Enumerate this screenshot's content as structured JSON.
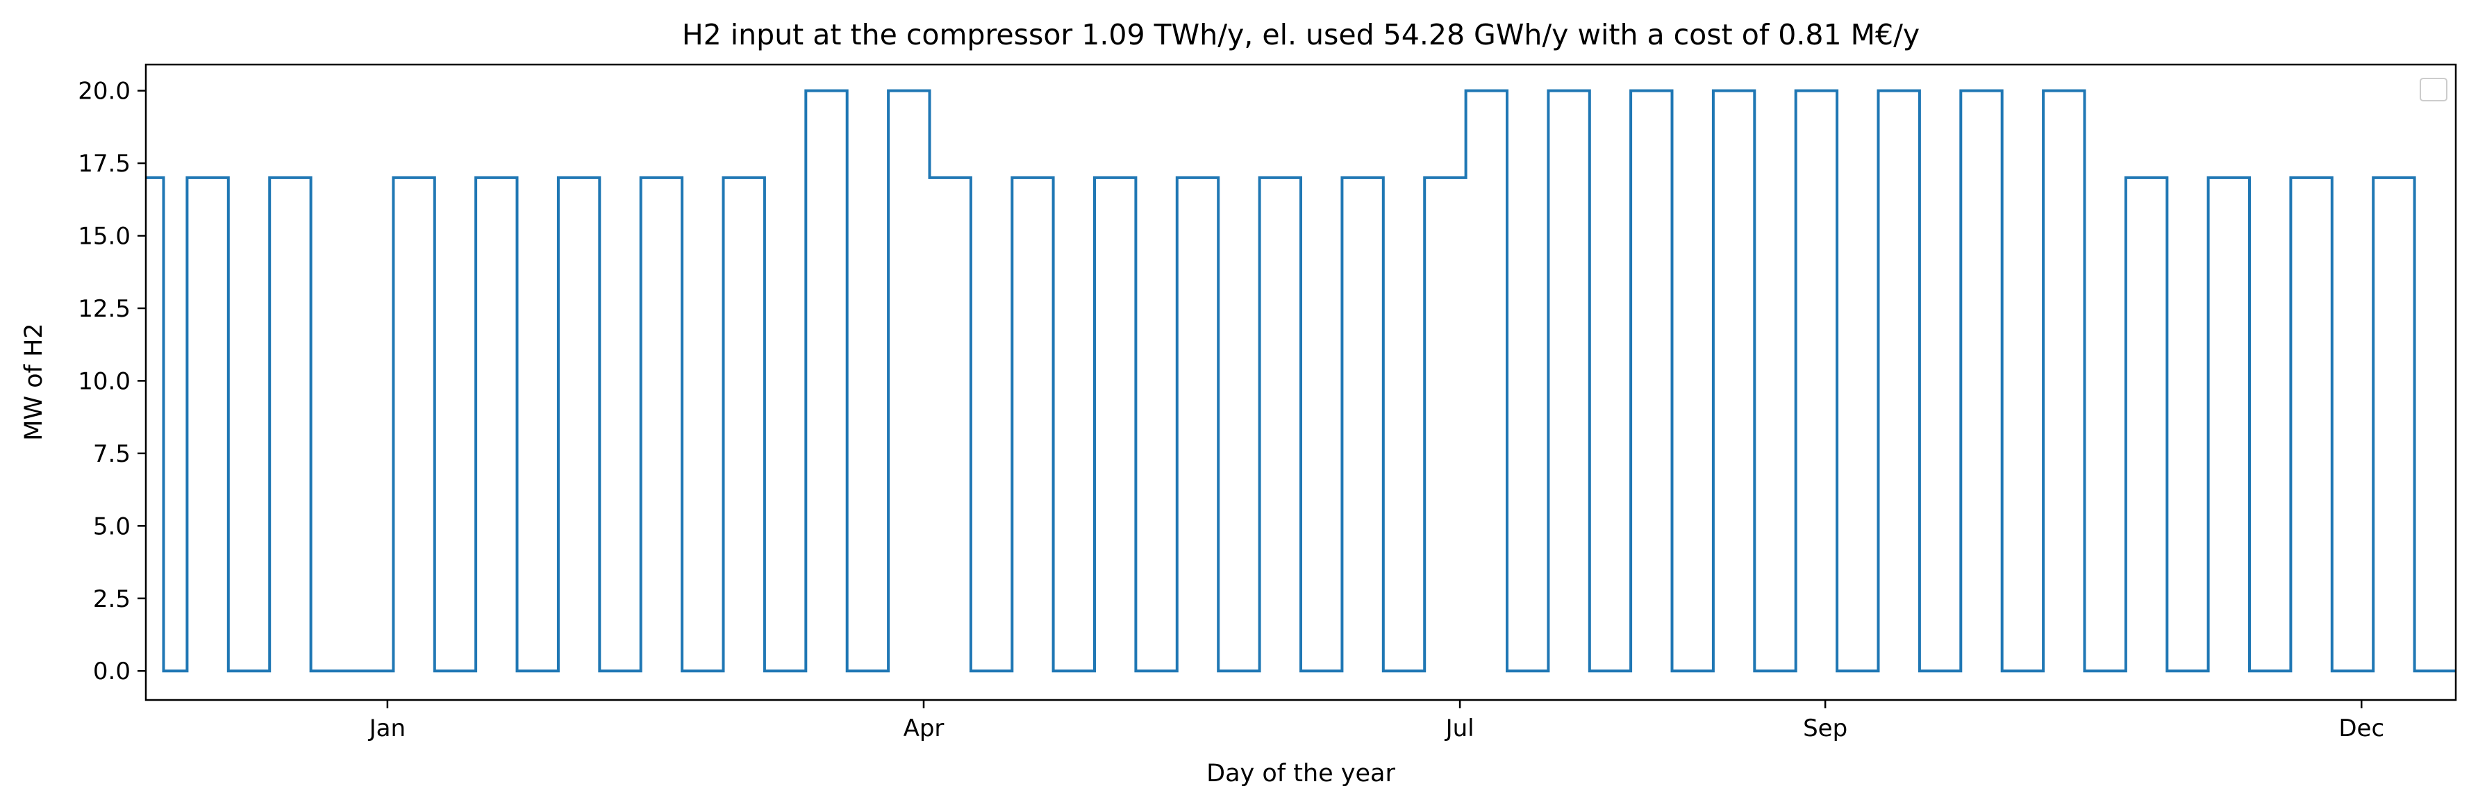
{
  "chart_data": {
    "type": "line",
    "title": "H2 input at the compressor 1.09 TWh/y, el. used 54.28 GWh/y with a cost of 0.81 M€/y",
    "xlabel": "Day of the year",
    "ylabel": "MW of H2",
    "ylim": [
      -1.0,
      20.9
    ],
    "yticks": [
      0.0,
      2.5,
      5.0,
      7.5,
      10.0,
      12.5,
      15.0,
      17.5,
      20.0
    ],
    "ytick_labels": [
      "0.0",
      "2.5",
      "5.0",
      "7.5",
      "10.0",
      "12.5",
      "15.0",
      "17.5",
      "20.0"
    ],
    "xlim": [
      "2023-11-21",
      "2024-12-17"
    ],
    "xticks": [
      "2024-01-01",
      "2024-04-01",
      "2024-07-01",
      "2024-09-01",
      "2024-12-01"
    ],
    "xtick_labels": [
      "Jan",
      "Apr",
      "Jul",
      "Sep",
      "Dec"
    ],
    "grid": false,
    "legend": {
      "placement": "upper-right",
      "entries": []
    },
    "series": [
      {
        "color": "#1f77b4",
        "x": [
          "2023-11-21",
          "2023-11-24",
          "2023-11-28",
          "2023-12-05",
          "2023-12-12",
          "2023-12-19",
          "2023-12-26",
          "2024-01-02",
          "2024-01-09",
          "2024-01-16",
          "2024-01-23",
          "2024-01-30",
          "2024-02-06",
          "2024-02-13",
          "2024-02-20",
          "2024-02-27",
          "2024-03-05",
          "2024-03-12",
          "2024-03-19",
          "2024-03-26",
          "2024-04-02",
          "2024-04-09",
          "2024-04-16",
          "2024-04-23",
          "2024-04-30",
          "2024-05-07",
          "2024-05-14",
          "2024-05-21",
          "2024-05-28",
          "2024-06-04",
          "2024-06-11",
          "2024-06-18",
          "2024-06-25",
          "2024-07-02",
          "2024-07-09",
          "2024-07-16",
          "2024-07-23",
          "2024-07-30",
          "2024-08-06",
          "2024-08-13",
          "2024-08-20",
          "2024-08-27",
          "2024-09-03",
          "2024-09-10",
          "2024-09-17",
          "2024-09-24",
          "2024-10-01",
          "2024-10-08",
          "2024-10-15",
          "2024-10-22",
          "2024-10-29",
          "2024-11-05",
          "2024-11-12",
          "2024-11-19",
          "2024-11-26",
          "2024-12-03",
          "2024-12-10",
          "2024-12-17"
        ],
        "y": [
          17.0,
          0.0,
          17.0,
          0.0,
          17.0,
          0.0,
          0.0,
          17.0,
          0.0,
          17.0,
          0.0,
          17.0,
          0.0,
          17.0,
          0.0,
          17.0,
          0.0,
          20.0,
          0.0,
          20.0,
          17.0,
          0.0,
          17.0,
          0.0,
          17.0,
          0.0,
          17.0,
          0.0,
          17.0,
          0.0,
          17.0,
          0.0,
          17.0,
          20.0,
          0.0,
          20.0,
          0.0,
          20.0,
          0.0,
          20.0,
          0.0,
          20.0,
          0.0,
          20.0,
          0.0,
          20.0,
          0.0,
          20.0,
          0.0,
          17.0,
          0.0,
          17.0,
          0.0,
          17.0,
          0.0,
          17.0,
          0.0,
          0.0
        ]
      }
    ]
  }
}
